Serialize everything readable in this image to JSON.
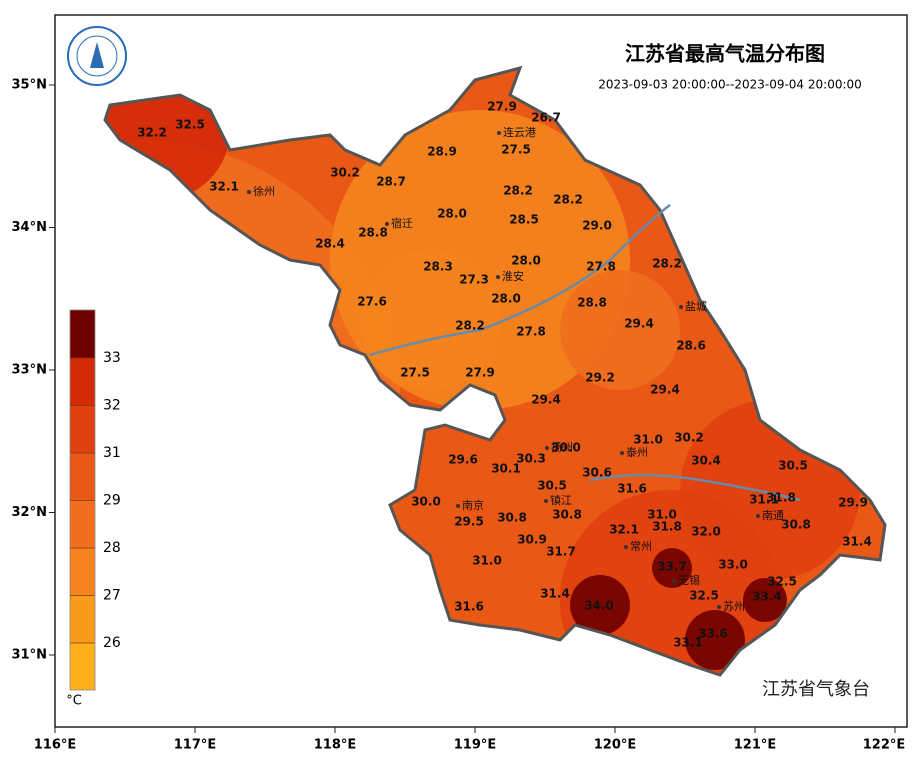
{
  "header": {
    "title": "江苏省最高气温分布图",
    "subtitle": "2023-09-03 20:00:00--2023-09-04 20:00:00"
  },
  "footer": "江苏省气象台",
  "lon_ticks": [
    {
      "value": 116,
      "label": "116°E"
    },
    {
      "value": 117,
      "label": "117°E"
    },
    {
      "value": 118,
      "label": "118°E"
    },
    {
      "value": 119,
      "label": "119°E"
    },
    {
      "value": 120,
      "label": "120°E"
    },
    {
      "value": 121,
      "label": "121°E"
    },
    {
      "value": 122,
      "label": "122°E"
    }
  ],
  "lat_ticks": [
    {
      "value": 31,
      "label": "31°N"
    },
    {
      "value": 32,
      "label": "32°N"
    },
    {
      "value": 33,
      "label": "33°N"
    },
    {
      "value": 34,
      "label": "34°N"
    },
    {
      "value": 35,
      "label": "35°N"
    }
  ],
  "legend": {
    "unit": "°C",
    "levels": [
      33,
      32,
      31,
      29,
      28,
      27,
      26
    ],
    "colors": [
      "#6e0000",
      "#d42a0a",
      "#e0400f",
      "#ea5816",
      "#f06e1e",
      "#f5841e",
      "#f89a1c",
      "#fdb01a"
    ]
  },
  "cities": [
    "连云港",
    "徐州",
    "宿迁",
    "淮安",
    "盐城",
    "扬州",
    "泰州",
    "南京",
    "镇江",
    "南通",
    "常州",
    "无锡",
    "苏州"
  ],
  "stations": [
    "27.9",
    "26.7",
    "27.5",
    "32.2",
    "32.5",
    "28.9",
    "30.2",
    "28.7",
    "32.1",
    "28.2",
    "28.2",
    "28.0",
    "28.5",
    "28.8",
    "29.0",
    "28.4",
    "28.3",
    "28.0",
    "27.3",
    "27.8",
    "28.2",
    "28.0",
    "27.6",
    "28.8",
    "29.4",
    "28.2",
    "27.8",
    "28.6",
    "27.5",
    "27.9",
    "29.2",
    "29.4",
    "29.4",
    "31.0",
    "30.2",
    "30.0",
    "29.6",
    "30.3",
    "30.1",
    "30.4",
    "30.5",
    "30.6",
    "31.6",
    "30.5",
    "30.0",
    "31.1",
    "31.8",
    "29.9",
    "29.5",
    "30.8",
    "30.8",
    "31.0",
    "32.1",
    "31.8",
    "32.0",
    "30.8",
    "31.4",
    "30.9",
    "31.7",
    "31.0",
    "33.7",
    "33.0",
    "32.5",
    "31.4",
    "32.5",
    "33.4",
    "31.6",
    "34.0",
    "33.6",
    "33.1"
  ]
}
